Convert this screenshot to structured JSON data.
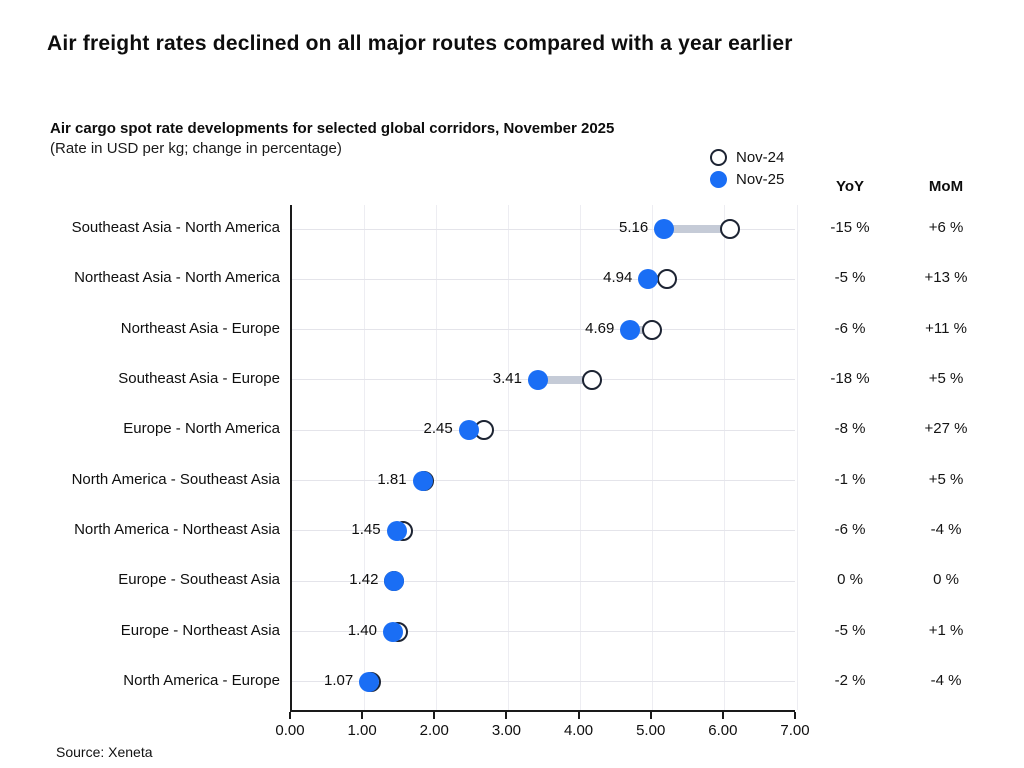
{
  "page": {
    "title": "Air freight rates declined on all major routes compared with a year earlier",
    "subtitle": "Air cargo spot rate developments for selected global corridors, November 2025",
    "unit_note": "(Rate in USD per kg; change in percentage)",
    "source": "Source: Xeneta"
  },
  "legend": {
    "nov24_label": "Nov-24",
    "nov25_label": "Nov-25"
  },
  "columns": {
    "yoy_header": "YoY",
    "mom_header": "MoM"
  },
  "colors": {
    "nov25_fill": "#1a6ef5",
    "nov24_stroke": "#1d2433",
    "connector": "#c5cbd7",
    "grid": "#e8e8ee",
    "axis": "#1a1a1a",
    "text": "#111111"
  },
  "chart_data": {
    "type": "scatter",
    "variant": "dumbbell",
    "title": "Air cargo spot rate developments for selected global corridors, November 2025",
    "xlabel": "Rate in USD per kg",
    "ylabel": "",
    "xlim": [
      0,
      7
    ],
    "x_tick_labels": [
      "0.00",
      "1.00",
      "2.00",
      "3.00",
      "4.00",
      "5.00",
      "6.00",
      "7.00"
    ],
    "grid": true,
    "legend_position": "top-right",
    "series": [
      {
        "name": "Nov-24",
        "marker": "open-circle"
      },
      {
        "name": "Nov-25",
        "marker": "filled-circle"
      }
    ],
    "rows": [
      {
        "route": "Southeast Asia - North America",
        "nov25": 5.16,
        "nov24": 6.07,
        "value_label": "5.16",
        "yoy": "-15 %",
        "mom": "+6 %"
      },
      {
        "route": "Northeast Asia - North America",
        "nov25": 4.94,
        "nov24": 5.2,
        "value_label": "4.94",
        "yoy": "-5 %",
        "mom": "+13 %"
      },
      {
        "route": "Northeast Asia - Europe",
        "nov25": 4.69,
        "nov24": 4.99,
        "value_label": "4.69",
        "yoy": "-6 %",
        "mom": "+11 %"
      },
      {
        "route": "Southeast Asia - Europe",
        "nov25": 3.41,
        "nov24": 4.16,
        "value_label": "3.41",
        "yoy": "-18 %",
        "mom": "+5 %"
      },
      {
        "route": "Europe - North America",
        "nov25": 2.45,
        "nov24": 2.66,
        "value_label": "2.45",
        "yoy": "-8 %",
        "mom": "+27 %"
      },
      {
        "route": "North America - Southeast Asia",
        "nov25": 1.81,
        "nov24": 1.83,
        "value_label": "1.81",
        "yoy": "-1 %",
        "mom": "+5 %"
      },
      {
        "route": "North America - Northeast Asia",
        "nov25": 1.45,
        "nov24": 1.54,
        "value_label": "1.45",
        "yoy": "-6 %",
        "mom": "-4 %"
      },
      {
        "route": "Europe - Southeast Asia",
        "nov25": 1.42,
        "nov24": 1.42,
        "value_label": "1.42",
        "yoy": "0 %",
        "mom": "0 %"
      },
      {
        "route": "Europe - Northeast Asia",
        "nov25": 1.4,
        "nov24": 1.47,
        "value_label": "1.40",
        "yoy": "-5 %",
        "mom": "+1 %"
      },
      {
        "route": "North America - Europe",
        "nov25": 1.07,
        "nov24": 1.09,
        "value_label": "1.07",
        "yoy": "-2 %",
        "mom": "-4 %"
      }
    ]
  }
}
